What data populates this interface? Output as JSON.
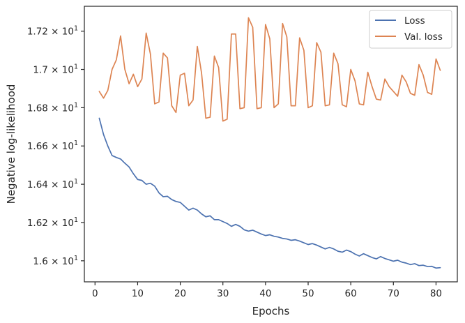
{
  "chart_data": {
    "type": "line",
    "xlabel": "Epochs",
    "ylabel": "Negative log-likelihood",
    "xlim": [
      -2.5,
      85
    ],
    "ylim": [
      15.89,
      17.33
    ],
    "x_ticks": [
      0,
      10,
      20,
      30,
      40,
      50,
      60,
      70,
      80
    ],
    "y_ticks": [
      {
        "value": 16.0,
        "label": "1.6 × 10",
        "exp": "1"
      },
      {
        "value": 16.2,
        "label": "1.62 × 10",
        "exp": "1"
      },
      {
        "value": 16.4,
        "label": "1.64 × 10",
        "exp": "1"
      },
      {
        "value": 16.6,
        "label": "1.66 × 10",
        "exp": "1"
      },
      {
        "value": 16.8,
        "label": "1.68 × 10",
        "exp": "1"
      },
      {
        "value": 17.0,
        "label": "1.7 × 10",
        "exp": "1"
      },
      {
        "value": 17.2,
        "label": "1.72 × 10",
        "exp": "1"
      }
    ],
    "grid": false,
    "legend_position": "top-right",
    "x": [
      1,
      2,
      3,
      4,
      5,
      6,
      7,
      8,
      9,
      10,
      11,
      12,
      13,
      14,
      15,
      16,
      17,
      18,
      19,
      20,
      21,
      22,
      23,
      24,
      25,
      26,
      27,
      28,
      29,
      30,
      31,
      32,
      33,
      34,
      35,
      36,
      37,
      38,
      39,
      40,
      41,
      42,
      43,
      44,
      45,
      46,
      47,
      48,
      49,
      50,
      51,
      52,
      53,
      54,
      55,
      56,
      57,
      58,
      59,
      60,
      61,
      62,
      63,
      64,
      65,
      66,
      67,
      68,
      69,
      70,
      71,
      72,
      73,
      74,
      75,
      76,
      77,
      78,
      79,
      80,
      81
    ],
    "series": [
      {
        "name": "Loss",
        "color": "#4c72b0",
        "values": [
          16.745,
          16.66,
          16.6,
          16.55,
          16.54,
          16.532,
          16.51,
          16.49,
          16.455,
          16.425,
          16.42,
          16.4,
          16.405,
          16.39,
          16.355,
          16.335,
          16.337,
          16.32,
          16.31,
          16.305,
          16.285,
          16.265,
          16.275,
          16.265,
          16.245,
          16.23,
          16.235,
          16.215,
          16.215,
          16.205,
          16.195,
          16.18,
          16.19,
          16.18,
          16.162,
          16.155,
          16.16,
          16.15,
          16.14,
          16.132,
          16.136,
          16.128,
          16.124,
          16.117,
          16.114,
          16.107,
          16.11,
          16.103,
          16.094,
          16.085,
          16.09,
          16.082,
          16.072,
          16.062,
          16.07,
          16.062,
          16.05,
          16.045,
          16.056,
          16.048,
          16.035,
          16.025,
          16.037,
          16.027,
          16.017,
          16.01,
          16.022,
          16.012,
          16.005,
          15.998,
          16.003,
          15.993,
          15.988,
          15.98,
          15.985,
          15.975,
          15.977,
          15.97,
          15.971,
          15.962,
          15.964
        ]
      },
      {
        "name": "Val. loss",
        "color": "#dd8452",
        "values": [
          16.885,
          16.85,
          16.89,
          17.0,
          17.05,
          17.175,
          17.0,
          16.925,
          16.975,
          16.91,
          16.95,
          17.19,
          17.08,
          16.82,
          16.83,
          17.085,
          17.06,
          16.81,
          16.775,
          16.97,
          16.98,
          16.81,
          16.84,
          17.12,
          16.98,
          16.745,
          16.75,
          17.07,
          17.01,
          16.73,
          16.74,
          17.185,
          17.185,
          16.795,
          16.8,
          17.27,
          17.22,
          16.795,
          16.8,
          17.235,
          17.16,
          16.8,
          16.82,
          17.24,
          17.17,
          16.81,
          16.81,
          17.165,
          17.1,
          16.8,
          16.81,
          17.14,
          17.09,
          16.81,
          16.815,
          17.085,
          17.03,
          16.815,
          16.805,
          17.0,
          16.94,
          16.82,
          16.815,
          16.985,
          16.91,
          16.845,
          16.84,
          16.95,
          16.91,
          16.885,
          16.86,
          16.97,
          16.935,
          16.875,
          16.865,
          17.025,
          16.97,
          16.88,
          16.87,
          17.055,
          16.995
        ]
      }
    ]
  }
}
